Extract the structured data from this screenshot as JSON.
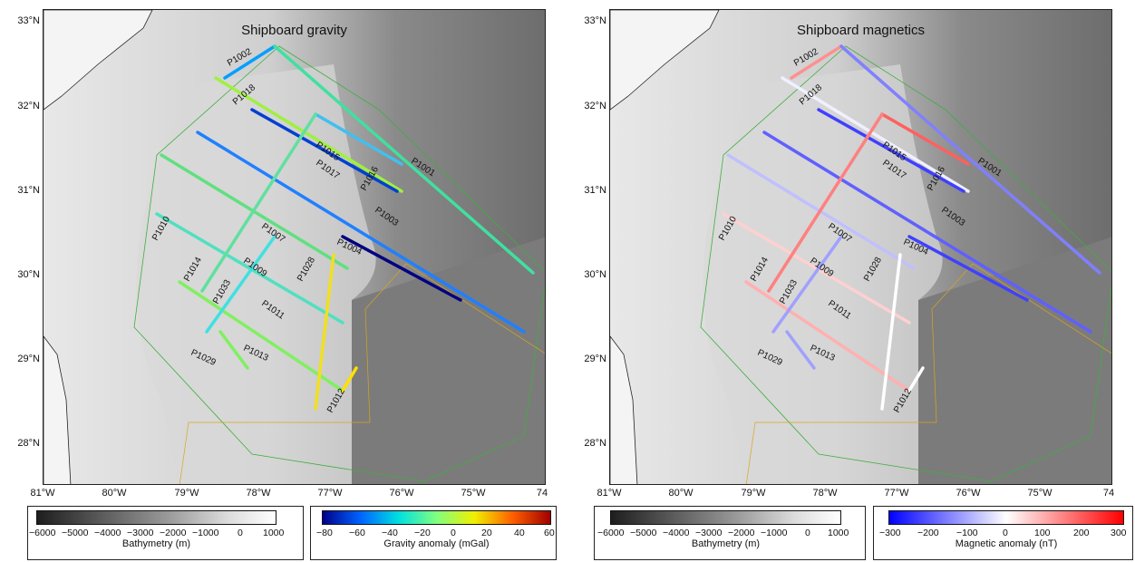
{
  "maps": [
    {
      "title": "Shipboard gravity",
      "y_ticks": [
        "33°N",
        "32°N",
        "31°N",
        "30°N",
        "29°N",
        "28°N"
      ],
      "x_ticks": [
        "81°W",
        "80°W",
        "79°W",
        "78°W",
        "77°W",
        "76°W",
        "75°W",
        "74"
      ],
      "track_labels": [
        "P1002",
        "P1018",
        "P1015",
        "P1017",
        "P1016",
        "P1001",
        "P1003",
        "P1010",
        "P1007",
        "P1004",
        "P1014",
        "P1009",
        "P1028",
        "P1033",
        "P1011",
        "P1029",
        "P1013",
        "P1012"
      ],
      "colorbars": [
        {
          "title": "Bathymetry (m)",
          "labels": [
            "−6000",
            "−5000",
            "−4000",
            "−3000",
            "−2000",
            "−1000",
            "0",
            "1000"
          ],
          "colors": [
            "#1e1e1e",
            "#9a9a9a",
            "#dcdcdc",
            "#ffffff"
          ]
        },
        {
          "title": "Gravity anomaly (mGal)",
          "labels": [
            "−80",
            "−60",
            "−40",
            "−20",
            "0",
            "20",
            "40",
            "60"
          ],
          "colors": [
            "#00008b",
            "#0064ff",
            "#00e0e0",
            "#80ff80",
            "#f0f000",
            "#ff6000",
            "#a00000"
          ]
        }
      ],
      "track_color_scheme": "jet"
    },
    {
      "title": "Shipboard magnetics",
      "y_ticks": [
        "33°N",
        "32°N",
        "31°N",
        "30°N",
        "29°N",
        "28°N"
      ],
      "x_ticks": [
        "81°W",
        "80°W",
        "79°W",
        "78°W",
        "77°W",
        "76°W",
        "75°W",
        "74"
      ],
      "track_labels": [
        "P1002",
        "P1018",
        "P1015",
        "P1017",
        "P1016",
        "P1001",
        "P1003",
        "P1010",
        "P1007",
        "P1004",
        "P1014",
        "P1009",
        "P1028",
        "P1033",
        "P1011",
        "P1029",
        "P1013",
        "P1012"
      ],
      "colorbars": [
        {
          "title": "Bathymetry (m)",
          "labels": [
            "−6000",
            "−5000",
            "−4000",
            "−3000",
            "−2000",
            "−1000",
            "0",
            "1000"
          ],
          "colors": [
            "#1e1e1e",
            "#9a9a9a",
            "#dcdcdc",
            "#ffffff"
          ]
        },
        {
          "title": "Magnetic anomaly (nT)",
          "labels": [
            "−300",
            "−200",
            "−100",
            "0",
            "100",
            "200",
            "300"
          ],
          "colors": [
            "#0000ff",
            "#ffffff",
            "#ff0000"
          ]
        }
      ],
      "track_color_scheme": "polar"
    }
  ]
}
